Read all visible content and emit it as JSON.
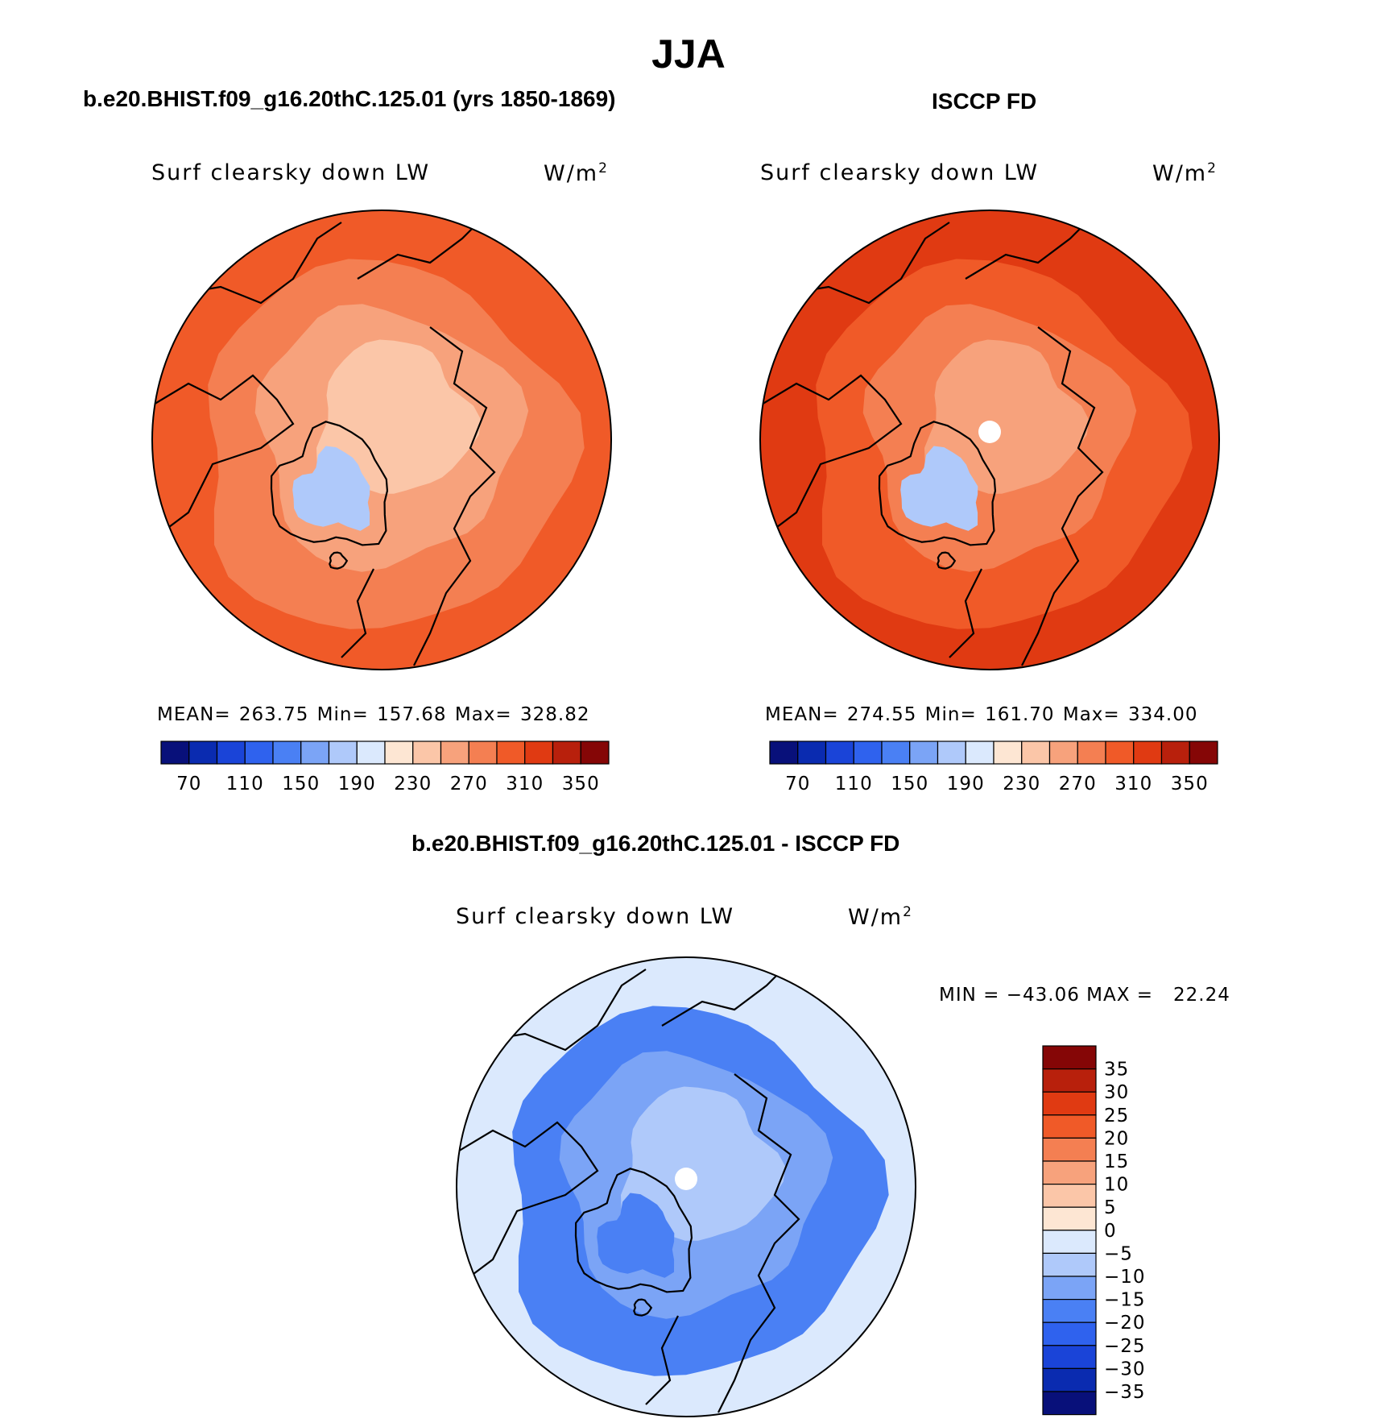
{
  "title": "JJA",
  "panels": {
    "model": {
      "subtitle": "b.e20.BHIST.f09_g16.20thC.125.01 (yrs 1850-1869)",
      "variable": "Surf clearsky down LW",
      "units_base": "W/m",
      "units_exp": "2",
      "stats": "MEAN= 263.75   Min= 157.68   Max= 328.82"
    },
    "obs": {
      "subtitle": "ISCCP FD",
      "variable": "Surf clearsky down LW",
      "units_base": "W/m",
      "units_exp": "2",
      "stats": "MEAN= 274.55   Min= 161.70   Max= 334.00"
    },
    "diff": {
      "subtitle": "b.e20.BHIST.f09_g16.20thC.125.01 - ISCCP FD",
      "variable": "Surf clearsky down LW",
      "units_base": "W/m",
      "units_exp": "2",
      "stats": "MIN = −43.06 MAX =   22.24"
    }
  },
  "chart_data": [
    {
      "type": "heatmap",
      "projection": "north-polar-stereographic",
      "title": "b.e20.BHIST.f09_g16.20thC.125.01 (yrs 1850-1869)",
      "variable": "Surf clearsky down LW",
      "units": "W/m2",
      "mean": 263.75,
      "min": 157.68,
      "max": 328.82,
      "colorbar": {
        "levels": [
          70,
          90,
          110,
          130,
          150,
          170,
          190,
          210,
          230,
          250,
          270,
          290,
          310,
          330,
          350
        ],
        "tick_labels": [
          "70",
          "110",
          "150",
          "190",
          "230",
          "270",
          "310",
          "350"
        ],
        "colors": [
          "#08107a",
          "#0a2bb0",
          "#1a44d8",
          "#2f62ee",
          "#4a80f4",
          "#7ba4f6",
          "#afc9fa",
          "#dbe9fd",
          "#fde6d3",
          "#fbc6a8",
          "#f7a27c",
          "#f47f52",
          "#f05a28",
          "#e03a12",
          "#b8200c",
          "#850606"
        ]
      },
      "field": {
        "pole_value": 235,
        "high_arctic": 245,
        "arctic_ring": 262,
        "mid_latitudes": 285,
        "outer_ring": 305,
        "greenland_interior": 185
      }
    },
    {
      "type": "heatmap",
      "projection": "north-polar-stereographic",
      "title": "ISCCP FD",
      "variable": "Surf clearsky down LW",
      "units": "W/m2",
      "mean": 274.55,
      "min": 161.7,
      "max": 334.0,
      "colorbar": {
        "levels": [
          70,
          90,
          110,
          130,
          150,
          170,
          190,
          210,
          230,
          250,
          270,
          290,
          310,
          330,
          350
        ],
        "tick_labels": [
          "70",
          "110",
          "150",
          "190",
          "230",
          "270",
          "310",
          "350"
        ],
        "colors": [
          "#08107a",
          "#0a2bb0",
          "#1a44d8",
          "#2f62ee",
          "#4a80f4",
          "#7ba4f6",
          "#afc9fa",
          "#dbe9fd",
          "#fde6d3",
          "#fbc6a8",
          "#f7a27c",
          "#f47f52",
          "#f05a28",
          "#e03a12",
          "#b8200c",
          "#850606"
        ]
      },
      "field": {
        "pole_value": null,
        "high_arctic": 252,
        "arctic_ring": 272,
        "mid_latitudes": 298,
        "outer_ring": 318,
        "greenland_interior": 180
      }
    },
    {
      "type": "heatmap",
      "projection": "north-polar-stereographic",
      "title": "b.e20.BHIST.f09_g16.20thC.125.01 - ISCCP FD",
      "variable": "Surf clearsky down LW",
      "units": "W/m2",
      "min": -43.06,
      "max": 22.24,
      "colorbar": {
        "levels": [
          -35,
          -30,
          -25,
          -20,
          -15,
          -10,
          -5,
          0,
          5,
          10,
          15,
          20,
          25,
          30,
          35
        ],
        "tick_labels": [
          "35",
          "30",
          "25",
          "20",
          "15",
          "10",
          "5",
          "0",
          "−5",
          "−10",
          "−15",
          "−20",
          "−25",
          "−30",
          "−35"
        ],
        "colors": [
          "#08107a",
          "#0a2bb0",
          "#1a44d8",
          "#2f62ee",
          "#4a80f4",
          "#7ba4f6",
          "#afc9fa",
          "#dbe9fd",
          "#fde6d3",
          "#fbc6a8",
          "#f7a27c",
          "#f47f52",
          "#f05a28",
          "#e03a12",
          "#b8200c",
          "#850606"
        ]
      },
      "field": {
        "pole_value": null,
        "high_arctic": -8,
        "arctic_ring": -12,
        "mid_latitudes": -17,
        "outer_ring": -5,
        "greenland_interior": -20
      }
    }
  ]
}
